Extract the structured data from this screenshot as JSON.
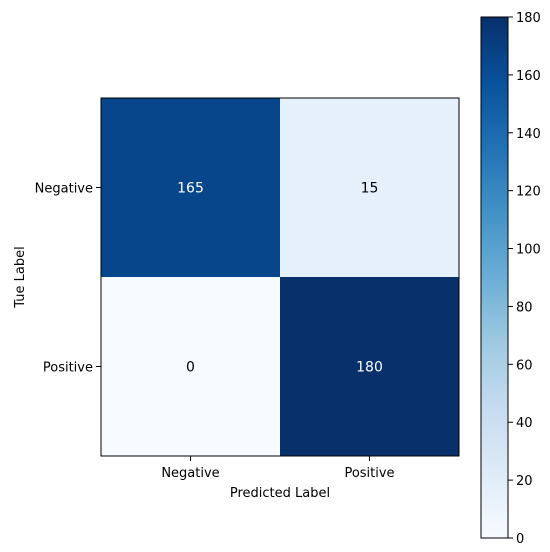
{
  "chart_data": {
    "type": "heatmap",
    "title": "",
    "xlabel": "Predicted Label",
    "ylabel": "Tue Label",
    "x_categories": [
      "Negative",
      "Positive"
    ],
    "y_categories": [
      "Negative",
      "Positive"
    ],
    "values": [
      [
        165,
        15
      ],
      [
        0,
        180
      ]
    ],
    "colormap": "Blues",
    "colorbar": {
      "range": [
        0,
        180
      ],
      "ticks": [
        "0",
        "20",
        "40",
        "60",
        "80",
        "100",
        "120",
        "140",
        "160",
        "180"
      ]
    },
    "text_colors": {
      "dark_cell": "#ffffff",
      "light_cell": "#000000"
    }
  }
}
